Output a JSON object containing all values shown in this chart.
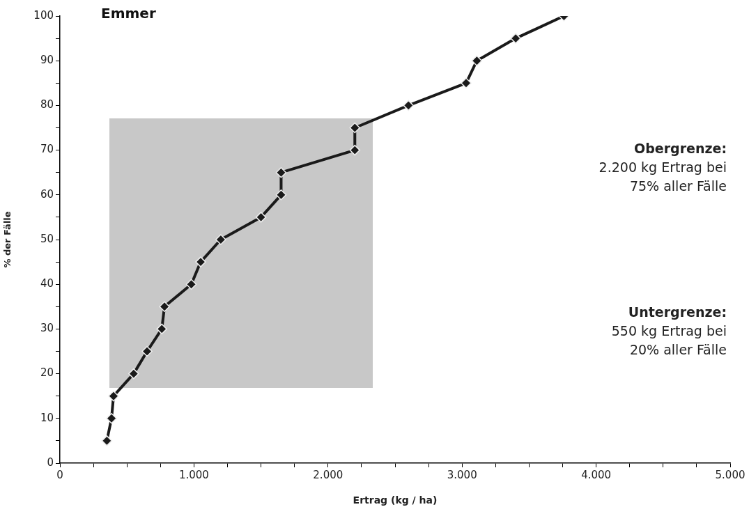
{
  "chart_data": {
    "type": "line",
    "title": "Emmer",
    "xlabel": "Ertrag (kg / ha)",
    "ylabel": "% der Fälle",
    "x": [
      350,
      385,
      400,
      550,
      650,
      760,
      780,
      980,
      1050,
      1200,
      1500,
      1650,
      1650,
      2200,
      2200,
      2600,
      3030,
      3110,
      3400,
      3760
    ],
    "series": [
      {
        "color": "#1a1a1a",
        "values": [
          5,
          10,
          15,
          20,
          25,
          30,
          35,
          40,
          45,
          50,
          55,
          60,
          65,
          70,
          75,
          80,
          85,
          90,
          95,
          100
        ]
      }
    ],
    "xlim": [
      0,
      5000
    ],
    "xticks": [
      0,
      {
        "value": 250,
        "label": null
      },
      {
        "value": 500,
        "label": null
      },
      {
        "value": 750,
        "label": null
      },
      {
        "value": 1000,
        "label": "1.000"
      },
      {
        "value": 1250,
        "label": null
      },
      {
        "value": 1500,
        "label": null
      },
      {
        "value": 1750,
        "label": null
      },
      {
        "value": 2000,
        "label": "2.000"
      },
      {
        "value": 2250,
        "label": null
      },
      {
        "value": 2500,
        "label": null
      },
      {
        "value": 2750,
        "label": null
      },
      {
        "value": 3000,
        "label": "3.000"
      },
      {
        "value": 3250,
        "label": null
      },
      {
        "value": 3500,
        "label": null
      },
      {
        "value": 3750,
        "label": null
      },
      {
        "value": 4000,
        "label": "4.000"
      },
      {
        "value": 4250,
        "label": null
      },
      {
        "value": 4500,
        "label": null
      },
      {
        "value": 4750,
        "label": null
      },
      {
        "value": 5000,
        "label": "5.000"
      }
    ],
    "ylim": [
      0,
      100
    ],
    "yticks": [
      0,
      {
        "value": 5,
        "label": null
      },
      10,
      {
        "value": 15,
        "label": null
      },
      20,
      {
        "value": 25,
        "label": null
      },
      30,
      {
        "value": 35,
        "label": null
      },
      40,
      {
        "value": 45,
        "label": null
      },
      50,
      {
        "value": 55,
        "label": null
      },
      60,
      {
        "value": 65,
        "label": null
      },
      70,
      {
        "value": 75,
        "label": null
      },
      80,
      {
        "value": 85,
        "label": null
      },
      90,
      {
        "value": 95,
        "label": null
      },
      100
    ],
    "annotations": [
      "Obergrenze:\n2.200 kg Ertrag bei\n75% aller Fälle",
      "Untergrenze:\n550 kg Ertrag bei\n20% aller Fälle"
    ],
    "grid": false,
    "legend": false,
    "marker": "diamond",
    "line_style": "solid"
  }
}
